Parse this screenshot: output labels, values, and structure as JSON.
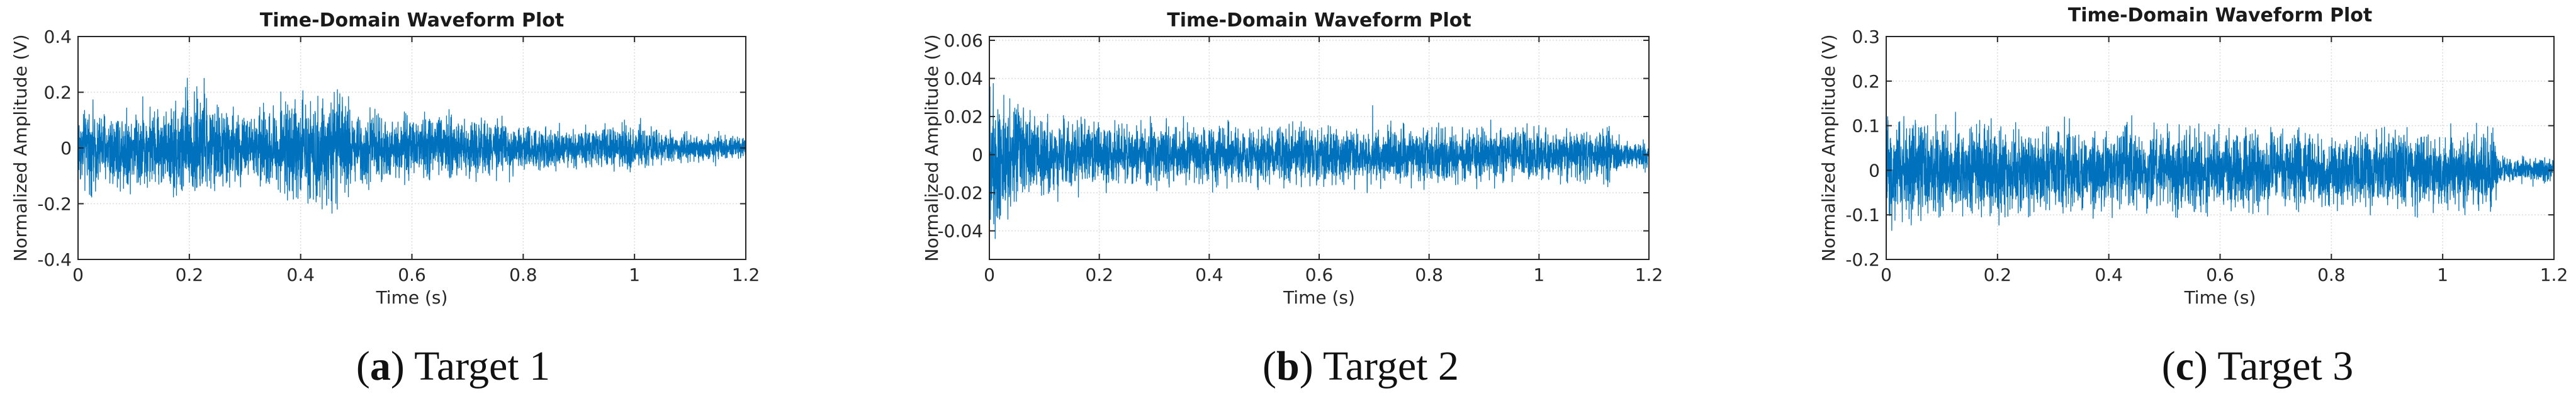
{
  "figure": {
    "captions": [
      {
        "letter": "a",
        "text": "Target 1"
      },
      {
        "letter": "b",
        "text": "Target 2"
      },
      {
        "letter": "c",
        "text": "Target 3"
      }
    ]
  },
  "chart_data": [
    {
      "type": "line",
      "title": "Time-Domain Waveform Plot",
      "xlabel": "Time (s)",
      "ylabel": "Normalized Amplitude (V)",
      "xlim": [
        0,
        1.2
      ],
      "ylim": [
        -0.4,
        0.4
      ],
      "xticks": [
        0,
        0.2,
        0.4,
        0.6,
        0.8,
        1,
        1.2
      ],
      "yticks": [
        -0.4,
        -0.2,
        0,
        0.2,
        0.4
      ],
      "grid": true,
      "color": "#0072BD",
      "series": [
        {
          "envelope_t": [
            0,
            0.05,
            0.1,
            0.15,
            0.2,
            0.25,
            0.3,
            0.35,
            0.4,
            0.45,
            0.5,
            0.55,
            0.6,
            0.65,
            0.7,
            0.75,
            0.8,
            0.85,
            0.9,
            0.95,
            1.0,
            1.05,
            1.1,
            1.15,
            1.2
          ],
          "envelope_amp": [
            0.16,
            0.17,
            0.17,
            0.16,
            0.26,
            0.18,
            0.15,
            0.17,
            0.22,
            0.24,
            0.18,
            0.13,
            0.13,
            0.15,
            0.12,
            0.12,
            0.09,
            0.09,
            0.08,
            0.1,
            0.1,
            0.07,
            0.06,
            0.05,
            0.05
          ]
        }
      ]
    },
    {
      "type": "line",
      "title": "Time-Domain Waveform Plot",
      "xlabel": "Time (s)",
      "ylabel": "Normalized Amplitude (V)",
      "xlim": [
        0,
        1.2
      ],
      "ylim": [
        -0.055,
        0.062
      ],
      "xticks": [
        0,
        0.2,
        0.4,
        0.6,
        0.8,
        1,
        1.2
      ],
      "yticks": [
        -0.04,
        -0.02,
        0,
        0.02,
        0.04,
        0.06
      ],
      "grid": true,
      "color": "#0072BD",
      "series": [
        {
          "envelope_t": [
            0,
            0.01,
            0.03,
            0.05,
            0.1,
            0.2,
            0.3,
            0.4,
            0.5,
            0.6,
            0.7,
            0.8,
            0.9,
            1.0,
            1.1,
            1.13,
            1.15,
            1.2
          ],
          "envelope_amp": [
            0.05,
            0.055,
            0.04,
            0.03,
            0.024,
            0.02,
            0.019,
            0.018,
            0.018,
            0.018,
            0.017,
            0.017,
            0.016,
            0.016,
            0.016,
            0.016,
            0.009,
            0.008
          ]
        }
      ]
    },
    {
      "type": "line",
      "title": "Time-Domain Waveform Plot",
      "xlabel": "Time (s)",
      "ylabel": "Normalized Amplitude (V)",
      "xlim": [
        0,
        1.2
      ],
      "ylim": [
        -0.2,
        0.3
      ],
      "xticks": [
        0,
        0.2,
        0.4,
        0.6,
        0.8,
        1,
        1.2
      ],
      "yticks": [
        -0.2,
        -0.1,
        0,
        0.1,
        0.2,
        0.3
      ],
      "grid": true,
      "color": "#0072BD",
      "series": [
        {
          "envelope_t": [
            0,
            0.02,
            0.1,
            0.2,
            0.3,
            0.4,
            0.5,
            0.6,
            0.7,
            0.8,
            0.9,
            1.0,
            1.09,
            1.1,
            1.15,
            1.2
          ],
          "envelope_amp": [
            0.16,
            0.14,
            0.13,
            0.12,
            0.12,
            0.11,
            0.11,
            0.1,
            0.1,
            0.1,
            0.1,
            0.1,
            0.1,
            0.04,
            0.035,
            0.035
          ]
        }
      ]
    }
  ]
}
